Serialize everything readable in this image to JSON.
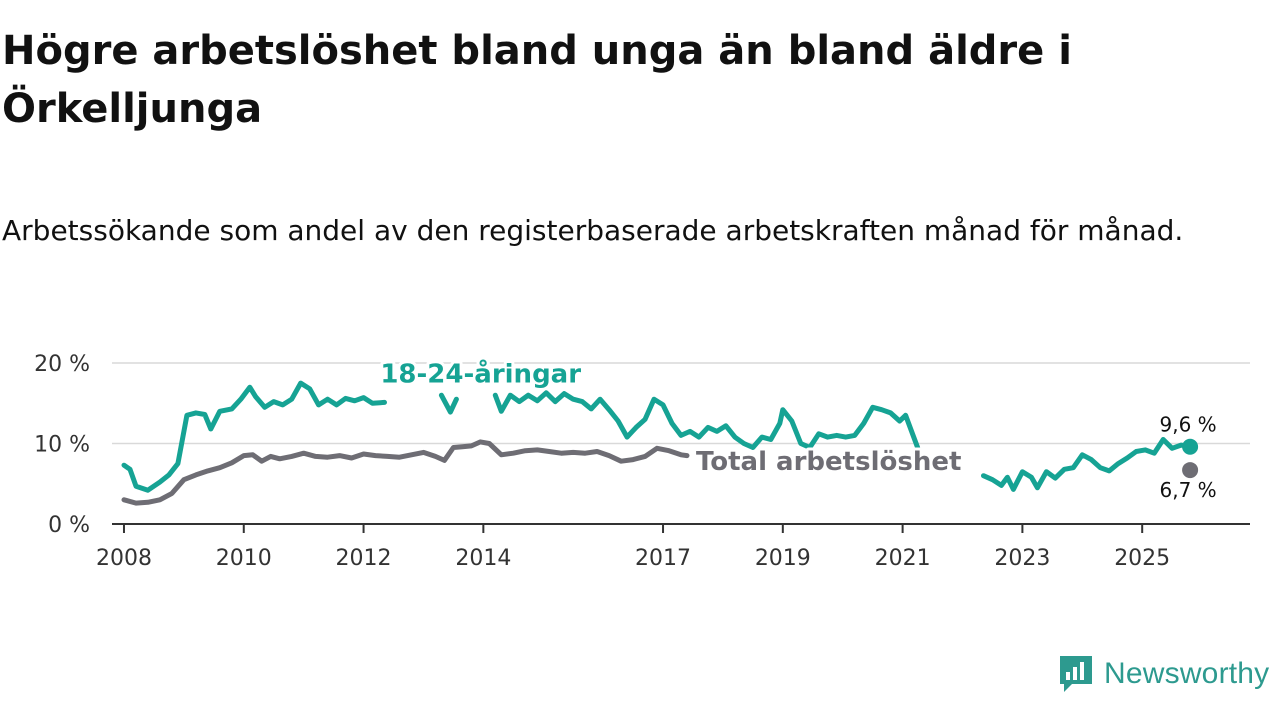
{
  "title": "Högre arbetslöshet bland unga än bland äldre i Örkelljunga",
  "subtitle": "Arbetssökande som andel av den registerbaserade arbetskraften månad för månad.",
  "brand": {
    "name": "Newsworthy"
  },
  "colors": {
    "youth": "#16a394",
    "total": "#6e6d74",
    "grid": "#d9d9d9",
    "axis": "#333333"
  },
  "chart_data": {
    "type": "line",
    "title": "Högre arbetslöshet bland unga än bland äldre i Örkelljunga",
    "xlabel": "",
    "ylabel": "",
    "ylim": [
      0,
      20
    ],
    "xlim": [
      2007.8,
      2026.8
    ],
    "grid": true,
    "y_ticks": [
      0,
      10,
      20
    ],
    "y_tick_labels": [
      "0 %",
      "10 %",
      "20 %"
    ],
    "x_ticks": [
      2008,
      2010,
      2012,
      2014,
      2017,
      2019,
      2021,
      2023,
      2025
    ],
    "x_tick_labels": [
      "2008",
      "2010",
      "2012",
      "2014",
      "2017",
      "2019",
      "2021",
      "2023",
      "2025"
    ],
    "series": [
      {
        "name": "18-24-åringar",
        "label": "18-24-åringar",
        "end_label": "9,6 %",
        "end_value": 9.6,
        "points": [
          [
            2008.0,
            7.3
          ],
          [
            2008.1,
            6.8
          ],
          [
            2008.2,
            4.7
          ],
          [
            2008.4,
            4.2
          ],
          [
            2008.6,
            5.2
          ],
          [
            2008.75,
            6.1
          ],
          [
            2008.9,
            7.5
          ],
          [
            2009.05,
            13.5
          ],
          [
            2009.2,
            13.8
          ],
          [
            2009.35,
            13.6
          ],
          [
            2009.45,
            11.8
          ],
          [
            2009.6,
            14.0
          ],
          [
            2009.8,
            14.3
          ],
          [
            2009.95,
            15.5
          ],
          [
            2010.1,
            17.0
          ],
          [
            2010.2,
            15.8
          ],
          [
            2010.35,
            14.5
          ],
          [
            2010.5,
            15.2
          ],
          [
            2010.65,
            14.8
          ],
          [
            2010.8,
            15.5
          ],
          [
            2010.95,
            17.5
          ],
          [
            2011.1,
            16.8
          ],
          [
            2011.25,
            14.8
          ],
          [
            2011.4,
            15.5
          ],
          [
            2011.55,
            14.8
          ],
          [
            2011.7,
            15.6
          ],
          [
            2011.85,
            15.3
          ],
          [
            2012.0,
            15.7
          ],
          [
            2012.15,
            15.0
          ],
          [
            2012.35,
            15.1
          ],
          [
            2012.4,
            null
          ],
          [
            2013.2,
            null
          ],
          [
            2013.3,
            16.0
          ],
          [
            2013.45,
            13.9
          ],
          [
            2013.55,
            15.5
          ],
          [
            2013.6,
            null
          ],
          [
            2014.1,
            null
          ],
          [
            2014.2,
            16.0
          ],
          [
            2014.3,
            14.0
          ],
          [
            2014.45,
            16.0
          ],
          [
            2014.6,
            15.2
          ],
          [
            2014.75,
            16.0
          ],
          [
            2014.9,
            15.3
          ],
          [
            2015.05,
            16.3
          ],
          [
            2015.2,
            15.2
          ],
          [
            2015.35,
            16.2
          ],
          [
            2015.5,
            15.5
          ],
          [
            2015.65,
            15.2
          ],
          [
            2015.8,
            14.3
          ],
          [
            2015.95,
            15.5
          ],
          [
            2016.1,
            14.2
          ],
          [
            2016.25,
            12.8
          ],
          [
            2016.4,
            10.8
          ],
          [
            2016.55,
            12.0
          ],
          [
            2016.7,
            13.0
          ],
          [
            2016.85,
            15.5
          ],
          [
            2017.0,
            14.8
          ],
          [
            2017.15,
            12.5
          ],
          [
            2017.3,
            11.0
          ],
          [
            2017.45,
            11.5
          ],
          [
            2017.6,
            10.8
          ],
          [
            2017.75,
            12.0
          ],
          [
            2017.9,
            11.5
          ],
          [
            2018.05,
            12.2
          ],
          [
            2018.2,
            10.8
          ],
          [
            2018.35,
            10.0
          ],
          [
            2018.5,
            9.5
          ],
          [
            2018.65,
            10.8
          ],
          [
            2018.8,
            10.5
          ],
          [
            2018.95,
            12.5
          ],
          [
            2019.0,
            14.2
          ],
          [
            2019.15,
            12.8
          ],
          [
            2019.3,
            10.0
          ],
          [
            2019.45,
            9.5
          ],
          [
            2019.6,
            11.2
          ],
          [
            2019.75,
            10.8
          ],
          [
            2019.9,
            11.0
          ],
          [
            2020.05,
            10.8
          ],
          [
            2020.2,
            11.0
          ],
          [
            2020.35,
            12.5
          ],
          [
            2020.5,
            14.5
          ],
          [
            2020.65,
            14.2
          ],
          [
            2020.8,
            13.8
          ],
          [
            2020.95,
            12.8
          ],
          [
            2021.05,
            13.5
          ],
          [
            2021.15,
            11.5
          ],
          [
            2021.25,
            9.5
          ],
          [
            2021.3,
            null
          ],
          [
            2022.3,
            null
          ],
          [
            2022.35,
            6.0
          ],
          [
            2022.5,
            5.5
          ],
          [
            2022.65,
            4.8
          ],
          [
            2022.75,
            5.8
          ],
          [
            2022.85,
            4.3
          ],
          [
            2023.0,
            6.5
          ],
          [
            2023.15,
            5.8
          ],
          [
            2023.25,
            4.5
          ],
          [
            2023.4,
            6.5
          ],
          [
            2023.55,
            5.7
          ],
          [
            2023.7,
            6.8
          ],
          [
            2023.85,
            7.0
          ],
          [
            2024.0,
            8.6
          ],
          [
            2024.15,
            8.0
          ],
          [
            2024.3,
            7.0
          ],
          [
            2024.45,
            6.6
          ],
          [
            2024.6,
            7.5
          ],
          [
            2024.75,
            8.2
          ],
          [
            2024.9,
            9.0
          ],
          [
            2025.05,
            9.2
          ],
          [
            2025.2,
            8.8
          ],
          [
            2025.35,
            10.5
          ],
          [
            2025.5,
            9.4
          ],
          [
            2025.65,
            9.8
          ],
          [
            2025.8,
            9.6
          ]
        ]
      },
      {
        "name": "Total arbetslöshet",
        "label": "Total arbetslöshet",
        "end_label": "6,7 %",
        "end_value": 6.7,
        "points": [
          [
            2008.0,
            3.0
          ],
          [
            2008.2,
            2.6
          ],
          [
            2008.4,
            2.7
          ],
          [
            2008.6,
            3.0
          ],
          [
            2008.8,
            3.8
          ],
          [
            2009.0,
            5.5
          ],
          [
            2009.2,
            6.1
          ],
          [
            2009.4,
            6.6
          ],
          [
            2009.6,
            7.0
          ],
          [
            2009.8,
            7.6
          ],
          [
            2010.0,
            8.5
          ],
          [
            2010.15,
            8.6
          ],
          [
            2010.3,
            7.8
          ],
          [
            2010.45,
            8.4
          ],
          [
            2010.6,
            8.1
          ],
          [
            2010.8,
            8.4
          ],
          [
            2011.0,
            8.8
          ],
          [
            2011.2,
            8.4
          ],
          [
            2011.4,
            8.3
          ],
          [
            2011.6,
            8.5
          ],
          [
            2011.8,
            8.2
          ],
          [
            2012.0,
            8.7
          ],
          [
            2012.2,
            8.5
          ],
          [
            2012.4,
            8.4
          ],
          [
            2012.6,
            8.3
          ],
          [
            2012.8,
            8.6
          ],
          [
            2013.0,
            8.9
          ],
          [
            2013.2,
            8.4
          ],
          [
            2013.35,
            7.9
          ],
          [
            2013.5,
            9.5
          ],
          [
            2013.65,
            9.6
          ],
          [
            2013.8,
            9.7
          ],
          [
            2013.95,
            10.2
          ],
          [
            2014.1,
            10.0
          ],
          [
            2014.3,
            8.6
          ],
          [
            2014.5,
            8.8
          ],
          [
            2014.7,
            9.1
          ],
          [
            2014.9,
            9.2
          ],
          [
            2015.1,
            9.0
          ],
          [
            2015.3,
            8.8
          ],
          [
            2015.5,
            8.9
          ],
          [
            2015.7,
            8.8
          ],
          [
            2015.9,
            9.0
          ],
          [
            2016.1,
            8.5
          ],
          [
            2016.3,
            7.8
          ],
          [
            2016.5,
            8.0
          ],
          [
            2016.7,
            8.4
          ],
          [
            2016.9,
            9.4
          ],
          [
            2017.1,
            9.1
          ],
          [
            2017.3,
            8.6
          ],
          [
            2017.4,
            8.5
          ],
          [
            2017.45,
            null
          ]
        ]
      }
    ],
    "end_markers": [
      9.6,
      6.7
    ]
  }
}
